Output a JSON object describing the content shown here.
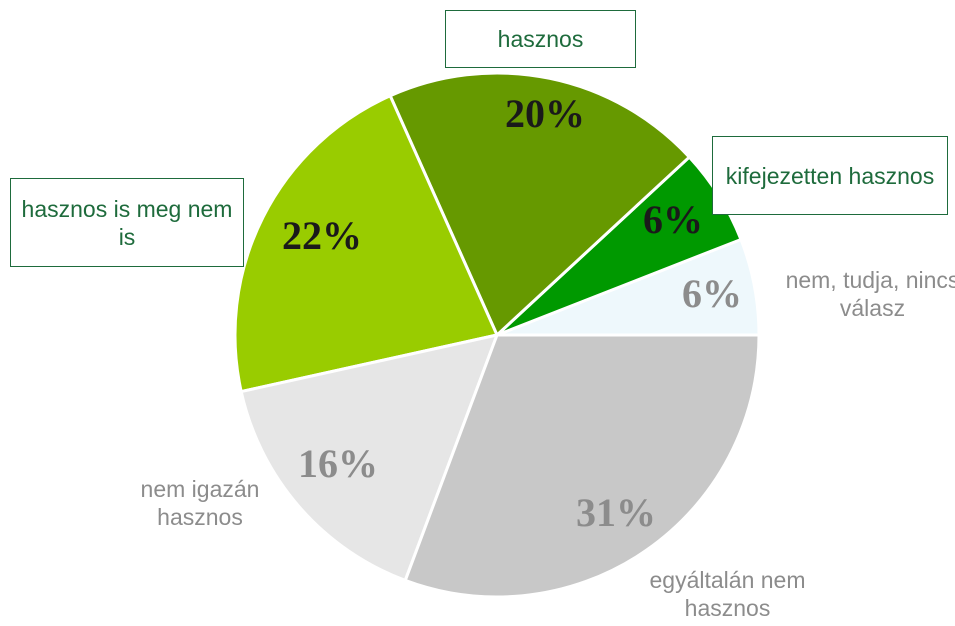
{
  "chart_data": {
    "type": "pie",
    "categories": [
      "nem, tudja, nincs válasz",
      "kifejezetten hasznos",
      "hasznos",
      "hasznos is meg nem is",
      "nem igazán hasznos",
      "egyáltalán nem hasznos"
    ],
    "values": [
      6,
      6,
      20,
      22,
      16,
      31
    ],
    "value_labels": [
      "6%",
      "6%",
      "20%",
      "22%",
      "16%",
      "31%"
    ],
    "colors": [
      "#eef8fc",
      "#009900",
      "#669900",
      "#99cc00",
      "#e6e6e6",
      "#c8c8c8"
    ]
  }
}
